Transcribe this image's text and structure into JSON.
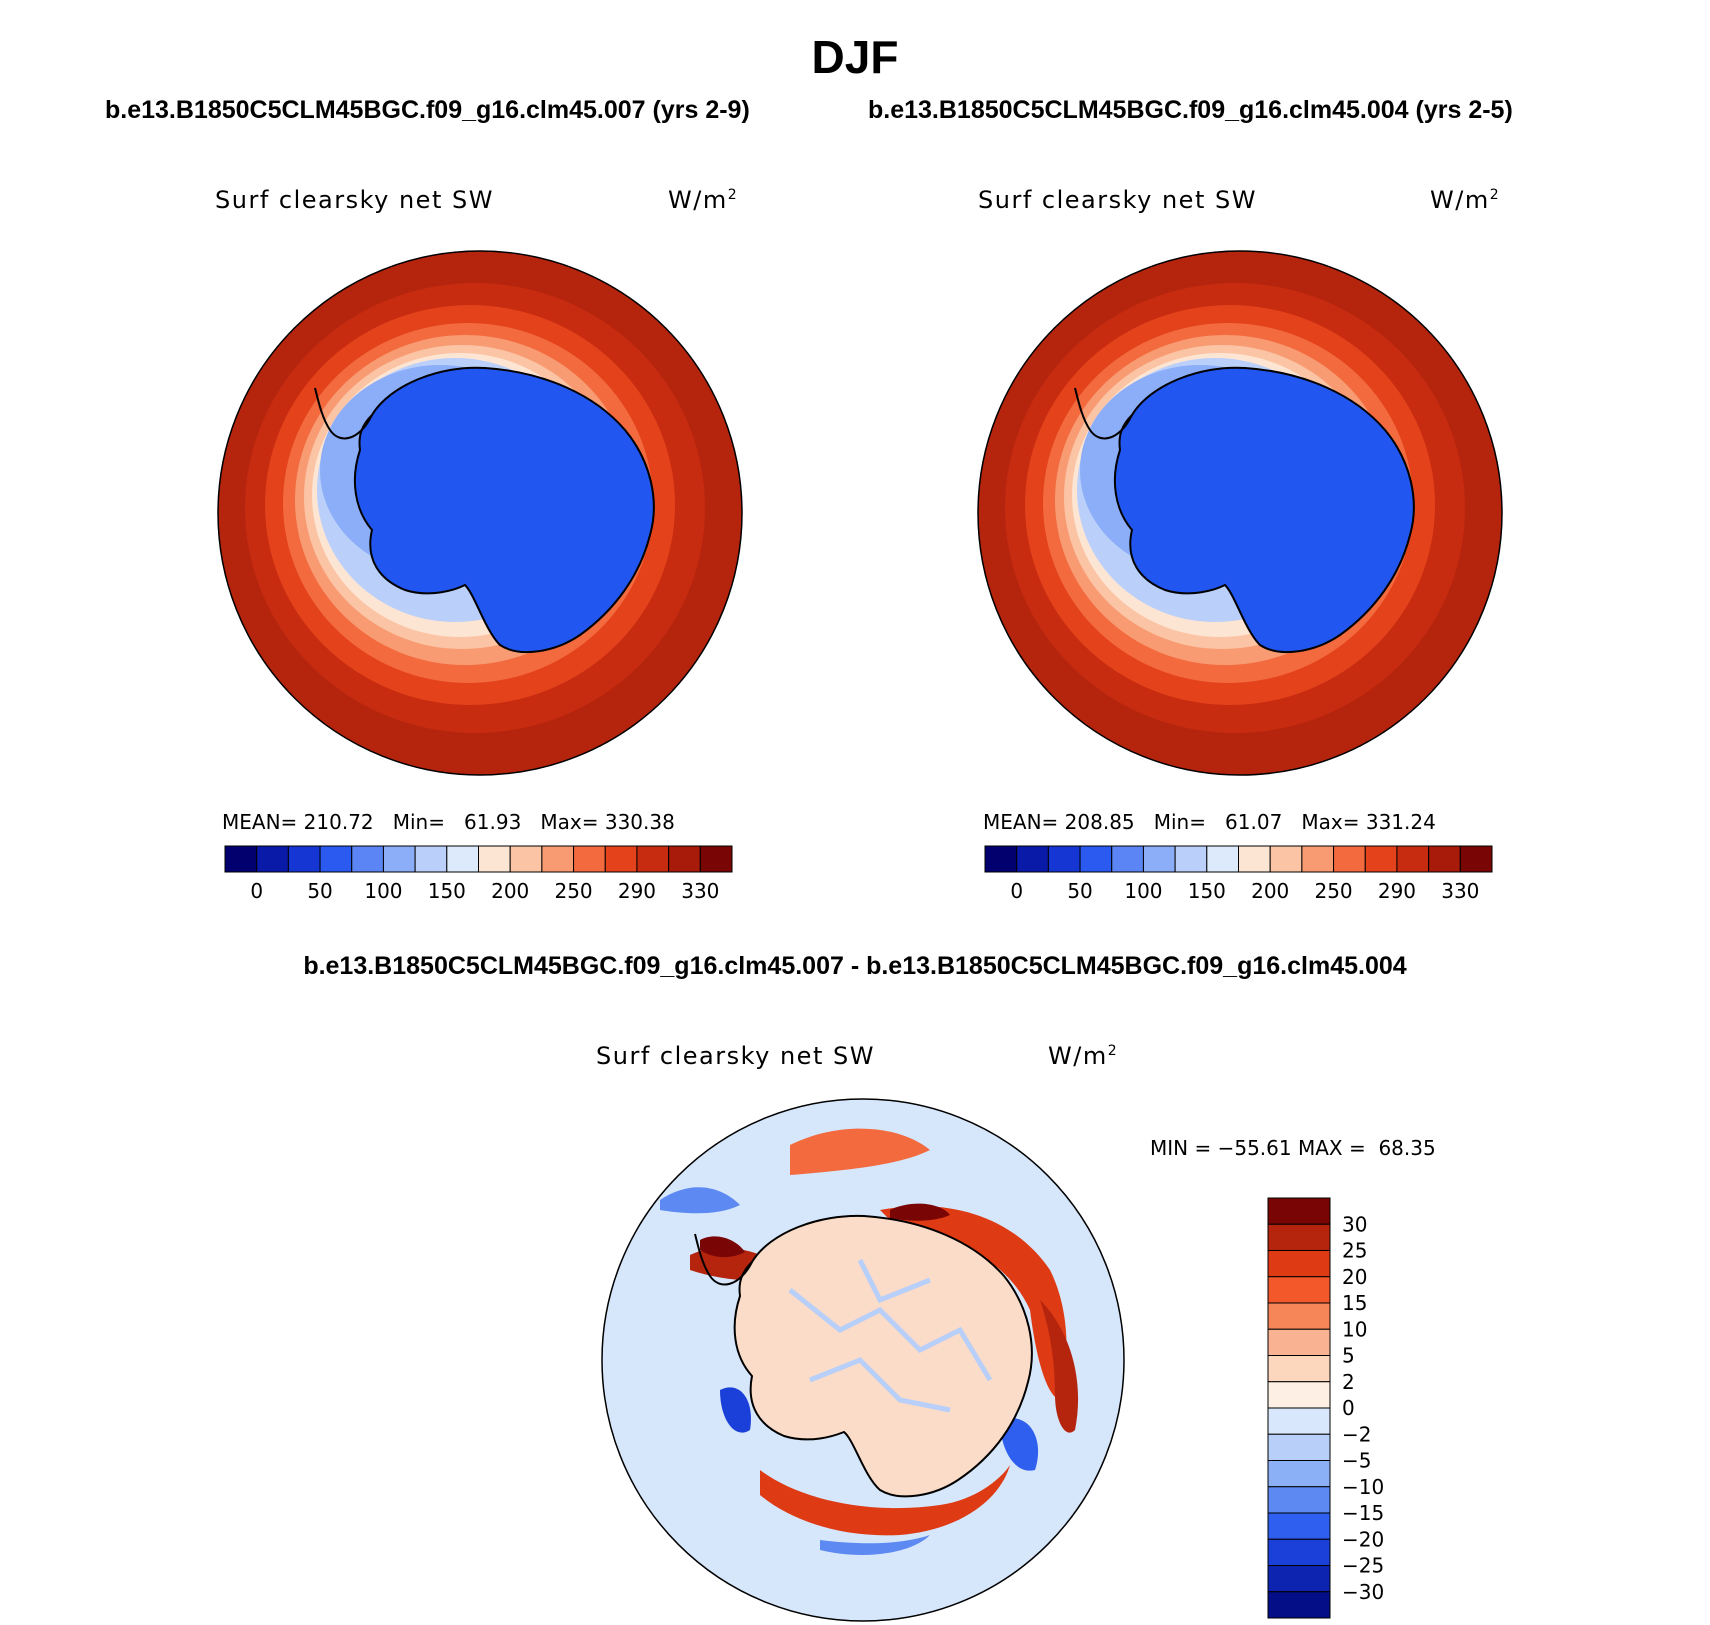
{
  "figure": {
    "title": "DJF",
    "subtitle_left": "b.e13.B1850C5CLM45BGC.f09_g16.clm45.007 (yrs 2-9)",
    "subtitle_right": "b.e13.B1850C5CLM45BGC.f09_g16.clm45.004 (yrs 2-5)",
    "difference_title": "b.e13.B1850C5CLM45BGC.f09_g16.clm45.007 - b.e13.B1850C5CLM45BGC.f09_g16.clm45.004"
  },
  "colors": {
    "ocean_warm": "#b5250e",
    "ice_blue": "#2256f0",
    "coast_line": "#000000",
    "diff_background": "#d6e6fb"
  },
  "chart_data": [
    {
      "type": "heatmap",
      "projection": "south-polar-stereographic",
      "case": "b.e13.B1850C5CLM45BGC.f09_g16.clm45.007 (yrs 2-9)",
      "variable_label": "Surf clearsky net SW",
      "units_label": "W/m",
      "units_exponent": "2",
      "stats": {
        "mean_label": "MEAN=",
        "mean": "210.72",
        "min_label": "Min=",
        "min": "61.93",
        "max_label": "Max=",
        "max": "330.38"
      },
      "colorbar_labels": [
        "0",
        "50",
        "100",
        "150",
        "200",
        "250",
        "290",
        "330"
      ],
      "colorbar_colors": [
        "#02006e",
        "#0a1aa8",
        "#1636d4",
        "#2a5af0",
        "#5b85f5",
        "#8cadf7",
        "#bad0fa",
        "#dceafc",
        "#fde5d3",
        "#fbc4a4",
        "#f89b73",
        "#f26a3e",
        "#e4421b",
        "#c72b10",
        "#a81a0a",
        "#7a0505"
      ]
    },
    {
      "type": "heatmap",
      "projection": "south-polar-stereographic",
      "case": "b.e13.B1850C5CLM45BGC.f09_g16.clm45.004 (yrs 2-5)",
      "variable_label": "Surf clearsky net SW",
      "units_label": "W/m",
      "units_exponent": "2",
      "stats": {
        "mean_label": "MEAN=",
        "mean": "208.85",
        "min_label": "Min=",
        "min": "61.07",
        "max_label": "Max=",
        "max": "331.24"
      },
      "colorbar_labels": [
        "0",
        "50",
        "100",
        "150",
        "200",
        "250",
        "290",
        "330"
      ],
      "colorbar_colors": [
        "#02006e",
        "#0a1aa8",
        "#1636d4",
        "#2a5af0",
        "#5b85f5",
        "#8cadf7",
        "#bad0fa",
        "#dceafc",
        "#fde5d3",
        "#fbc4a4",
        "#f89b73",
        "#f26a3e",
        "#e4421b",
        "#c72b10",
        "#a81a0a",
        "#7a0505"
      ]
    },
    {
      "type": "heatmap",
      "projection": "south-polar-stereographic",
      "case": "b.e13.B1850C5CLM45BGC.f09_g16.clm45.007 - b.e13.B1850C5CLM45BGC.f09_g16.clm45.004",
      "variable_label": "Surf clearsky net SW",
      "units_label": "W/m",
      "units_exponent": "2",
      "stats": {
        "min_label": "MIN =",
        "min": "−55.61",
        "max_label": "MAX =",
        "max": "68.35"
      },
      "colorbar_labels": [
        "30",
        "25",
        "20",
        "15",
        "10",
        "5",
        "2",
        "0",
        "−2",
        "−5",
        "−10",
        "−15",
        "−20",
        "−25",
        "−30"
      ],
      "colorbar_colors": [
        "#7a0505",
        "#b5250e",
        "#de3a14",
        "#f2582a",
        "#f68558",
        "#fab392",
        "#fdd6be",
        "#fdefe3",
        "#d8e7fb",
        "#b7cff9",
        "#8cb0f6",
        "#5d89f2",
        "#2f5fee",
        "#1a40d9",
        "#0c24b0",
        "#040e86"
      ]
    }
  ]
}
